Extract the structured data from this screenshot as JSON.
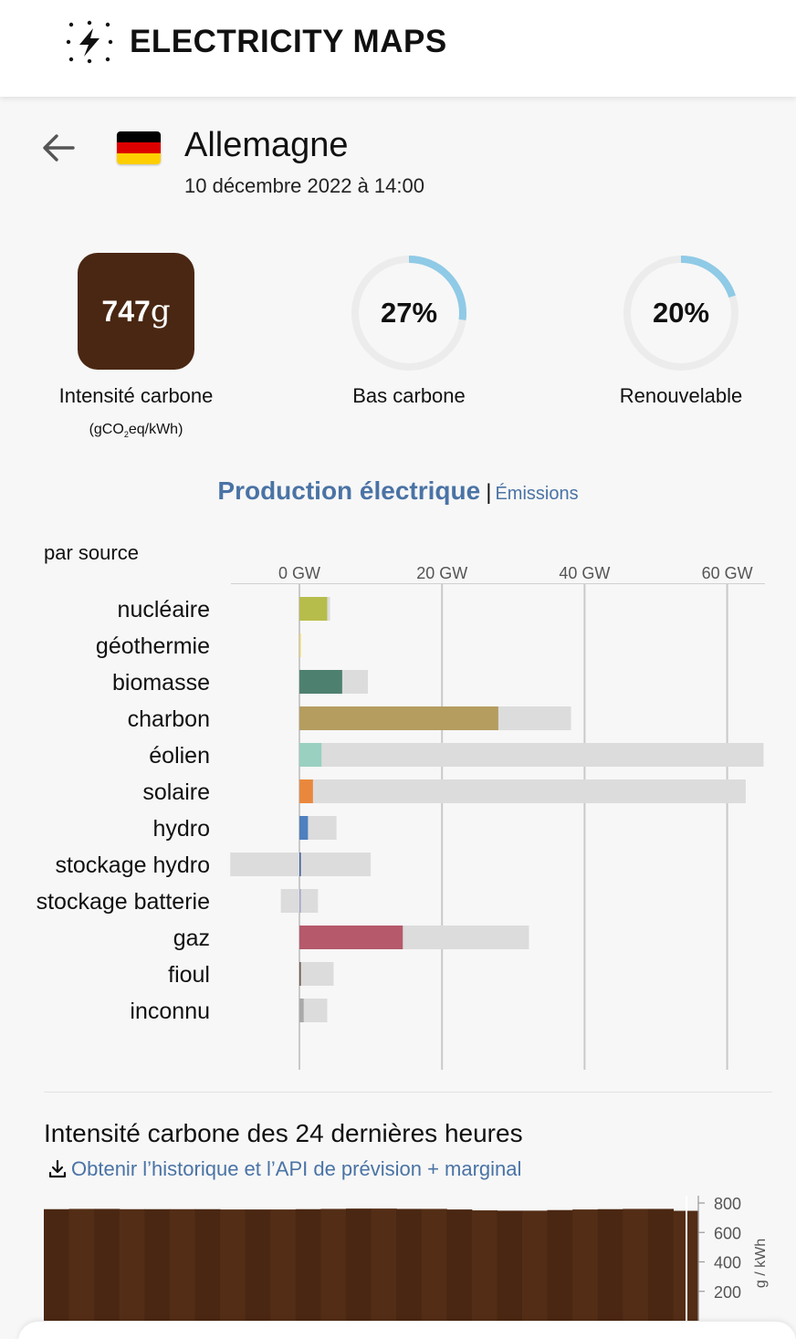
{
  "header": {
    "title": "ELECTRICITY MAPS",
    "logo_icon": "lightning-bolt-icon"
  },
  "zone": {
    "name": "Allemagne",
    "datetime": "10 décembre 2022 à 14:00",
    "flag_colors": [
      "#000000",
      "#dd0000",
      "#ffce00"
    ]
  },
  "carbon_intensity": {
    "value": "747",
    "unit": "g",
    "label": "Intensité carbone",
    "sublabel_pre": "(gCO",
    "sublabel_sub": "2",
    "sublabel_post": "eq/kWh)",
    "color": "#4a2712"
  },
  "low_carbon": {
    "value_text": "27%",
    "fraction": 0.27,
    "label": "Bas carbone"
  },
  "renewable": {
    "value_text": "20%",
    "fraction": 0.2,
    "label": "Renouvelable"
  },
  "tabs": {
    "active": "Production électrique",
    "separator": "|",
    "inactive": "Émissions"
  },
  "breakdown_label": "par source",
  "chart_data": {
    "type": "bar",
    "unit": "GW",
    "xlim": [
      -9.7,
      65.6
    ],
    "ticks": [
      {
        "value": 0,
        "label": "0 GW"
      },
      {
        "value": 20,
        "label": "20 GW"
      },
      {
        "value": 40,
        "label": "40 GW"
      },
      {
        "value": 60,
        "label": "60 GW"
      }
    ],
    "sources": [
      {
        "label": "nucléaire",
        "production": 3.9,
        "capacity": 4.3,
        "color": "#b7bd4b"
      },
      {
        "label": "géothermie",
        "production": 0.1,
        "capacity": 0.1,
        "color": "#e8d36a"
      },
      {
        "label": "biomasse",
        "production": 6.0,
        "capacity": 9.6,
        "color": "#4e8070"
      },
      {
        "label": "charbon",
        "production": 27.9,
        "capacity": 38.1,
        "color": "#b49d5f"
      },
      {
        "label": "éolien",
        "production": 3.1,
        "capacity": 65.1,
        "color": "#99d0c0"
      },
      {
        "label": "solaire",
        "production": 1.9,
        "capacity": 62.6,
        "color": "#e9883d"
      },
      {
        "label": "hydro",
        "production": 1.2,
        "capacity": 5.2,
        "color": "#4f7fbf"
      },
      {
        "label": "stockage hydro",
        "production": 0.1,
        "capacity_min": -9.7,
        "capacity": 10.0,
        "color": "#355b9a"
      },
      {
        "label": "stockage batterie",
        "production": 0.0,
        "capacity_min": -2.6,
        "capacity": 2.6,
        "color": "#9aa3c7"
      },
      {
        "label": "gaz",
        "production": 14.5,
        "capacity": 32.2,
        "color": "#b5596b"
      },
      {
        "label": "fioul",
        "production": 0.2,
        "capacity": 4.8,
        "color": "#6e5a4e"
      },
      {
        "label": "inconnu",
        "production": 0.6,
        "capacity": 3.9,
        "color": "#a9a9a9"
      }
    ]
  },
  "history": {
    "title": "Intensité carbone des 24 dernières heures",
    "link_text": "Obtenir l’historique et l’API de prévision + marginal",
    "download_icon": "download-icon",
    "y_axis": {
      "ticks": [
        "800",
        "600",
        "400",
        "200"
      ],
      "label": "g / kWh"
    },
    "values": [
      758,
      760,
      760,
      758,
      758,
      758,
      758,
      756,
      756,
      756,
      758,
      760,
      762,
      762,
      760,
      760,
      756,
      750,
      748,
      748,
      752,
      756,
      758,
      760,
      760,
      747
    ]
  }
}
